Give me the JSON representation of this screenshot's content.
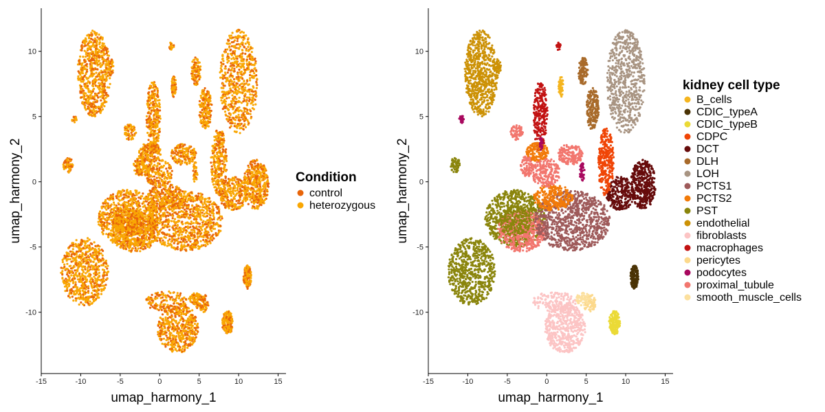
{
  "chart_data": [
    {
      "type": "scatter",
      "title": "",
      "xlabel": "umap_harmony_1",
      "ylabel": "umap_harmony_2",
      "xlim": [
        -15,
        16
      ],
      "ylim": [
        -14.7,
        13.3
      ],
      "x_ticks": [
        -15,
        -10,
        -5,
        0,
        5,
        10,
        15
      ],
      "y_ticks": [
        -10,
        -5,
        0,
        5,
        10
      ],
      "x_tick_labels": [
        "-15",
        "-10",
        "-5",
        "0",
        "5",
        "10",
        "15"
      ],
      "y_tick_labels": [
        "-10",
        "-5",
        "0",
        "5",
        "10"
      ],
      "grid": false,
      "legend": {
        "title": "Condition",
        "position": "right",
        "entries": [
          {
            "name": "control",
            "color": "#E8650A"
          },
          {
            "name": "heterozygous",
            "color": "#F9A704"
          }
        ]
      },
      "series": [
        {
          "name": "control",
          "color": "#E8650A"
        },
        {
          "name": "heterozygous",
          "color": "#F9A704"
        }
      ]
    },
    {
      "type": "scatter",
      "title": "",
      "xlabel": "umap_harmony_1",
      "ylabel": "umap_harmony_2",
      "xlim": [
        -15,
        16
      ],
      "ylim": [
        -14.7,
        13.3
      ],
      "x_ticks": [
        -15,
        -10,
        -5,
        0,
        5,
        10,
        15
      ],
      "y_ticks": [
        -10,
        -5,
        0,
        5,
        10
      ],
      "x_tick_labels": [
        "-15",
        "-10",
        "-5",
        "0",
        "5",
        "10",
        "15"
      ],
      "y_tick_labels": [
        "-10",
        "-5",
        "0",
        "5",
        "10"
      ],
      "grid": false,
      "legend": {
        "title": "kidney cell type",
        "position": "right",
        "entries": [
          {
            "name": "B_cells",
            "color": "#F5B51F"
          },
          {
            "name": "CDIC_typeA",
            "color": "#4A3305"
          },
          {
            "name": "CDIC_typeB",
            "color": "#EBDA36"
          },
          {
            "name": "CDPC",
            "color": "#F04506"
          },
          {
            "name": "DCT",
            "color": "#660B0B"
          },
          {
            "name": "DLH",
            "color": "#A86A2A"
          },
          {
            "name": "LOH",
            "color": "#A89482"
          },
          {
            "name": "PCTS1",
            "color": "#9E5A5A"
          },
          {
            "name": "PCTS2",
            "color": "#F27A08"
          },
          {
            "name": "PST",
            "color": "#8A850C"
          },
          {
            "name": "endothelial",
            "color": "#CC9105"
          },
          {
            "name": "fibroblasts",
            "color": "#FCC4C4"
          },
          {
            "name": "macrophages",
            "color": "#C21212"
          },
          {
            "name": "pericytes",
            "color": "#FCD98C"
          },
          {
            "name": "podocytes",
            "color": "#A8085E"
          },
          {
            "name": "proximal_tubule",
            "color": "#F2766E"
          },
          {
            "name": "smooth_muscle_cells",
            "color": "#FCE09E"
          }
        ]
      }
    }
  ]
}
